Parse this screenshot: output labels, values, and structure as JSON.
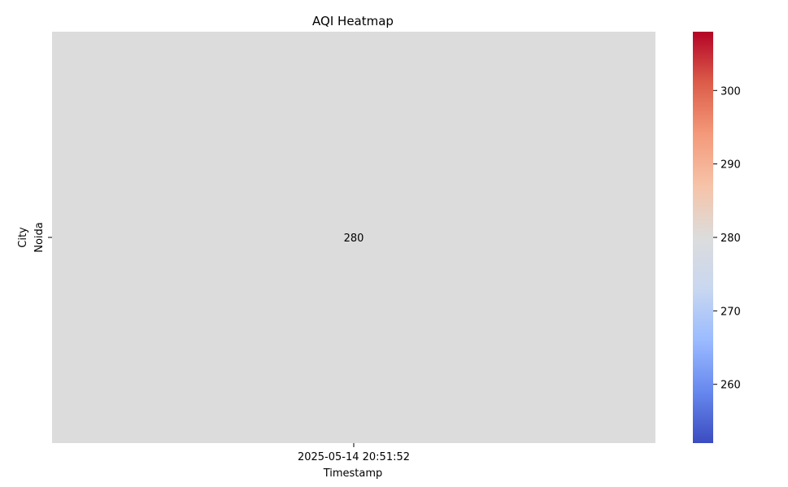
{
  "chart_data": {
    "type": "heatmap",
    "title": "AQI Heatmap",
    "xlabel": "Timestamp",
    "ylabel": "City",
    "x_categories": [
      "2025-05-14 20:51:52"
    ],
    "y_categories": [
      "Noida"
    ],
    "values": [
      [
        280
      ]
    ],
    "cell_labels": [
      [
        "280"
      ]
    ],
    "colormap": "coolwarm",
    "colorbar": {
      "range": [
        252,
        308
      ],
      "ticks": [
        260,
        270,
        280,
        290,
        300
      ],
      "tick_labels": [
        "260",
        "270",
        "280",
        "290",
        "300"
      ],
      "colors": [
        "#3b4cc0",
        "#6788ee",
        "#9abbff",
        "#c9d7f0",
        "#dcdcdc",
        "#f6c3a8",
        "#f49a7b",
        "#dc5d4a",
        "#b40426"
      ]
    },
    "cell_color": "#dcdcdc"
  }
}
